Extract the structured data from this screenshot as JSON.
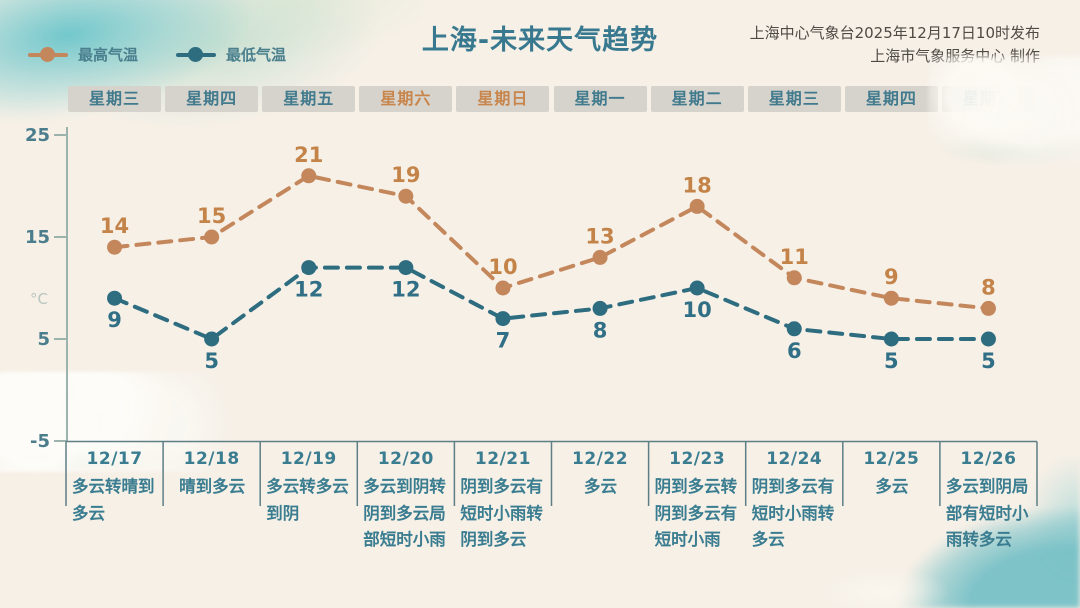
{
  "header": {
    "title": "上海-未来天气趋势",
    "source_line1": "上海中心气象台2025年12月17日10时发布",
    "source_line2": "上海市气象服务中心 制作"
  },
  "legend": {
    "high_label": "最高气温",
    "low_label": "最低气温"
  },
  "colors": {
    "background": "#f6f0e7",
    "teal_text": "#3b7d90",
    "axis": "#9cb2ac",
    "table_line": "#5e7e86",
    "tab_bg": "#d6d3cc",
    "tab_text": "#417a8d",
    "weekend_text": "#c8854b",
    "high_series": "#c4875c",
    "low_series": "#2e6c80"
  },
  "chart_data": {
    "type": "line",
    "title": "上海-未来天气趋势",
    "xlabel": "",
    "ylabel": "°C",
    "ylim": [
      -5,
      25
    ],
    "y_ticks": [
      25,
      15,
      5,
      -5
    ],
    "grid": false,
    "legend_position": "top-left",
    "line_style": "dashed",
    "x_weekdays": [
      "星期三",
      "星期四",
      "星期五",
      "星期六",
      "星期日",
      "星期一",
      "星期二",
      "星期三",
      "星期四",
      "星期五"
    ],
    "weekend_indices": [
      3,
      4
    ],
    "x_dates": [
      "12/17",
      "12/18",
      "12/19",
      "12/20",
      "12/21",
      "12/22",
      "12/23",
      "12/24",
      "12/25",
      "12/26"
    ],
    "series": [
      {
        "name": "最高气温",
        "values": [
          14,
          15,
          21,
          19,
          10,
          13,
          18,
          11,
          9,
          8
        ],
        "color": "#c4875c",
        "label_color": "#c48449",
        "label_position": "above"
      },
      {
        "name": "最低气温",
        "values": [
          9,
          5,
          12,
          12,
          7,
          8,
          10,
          6,
          5,
          5
        ],
        "color": "#2e6c80",
        "label_color": "#306f85",
        "label_position": "below"
      }
    ],
    "descriptions": [
      "多云转晴到多云",
      "晴到多云",
      "多云转多云到阴",
      "多云到阴转阴到多云局部短时小雨",
      "阴到多云有短时小雨转阴到多云",
      "多云",
      "阴到多云转阴到多云有短时小雨",
      "阴到多云有短时小雨转多云",
      "多云",
      "多云到阴局部有短时小雨转多云"
    ]
  }
}
